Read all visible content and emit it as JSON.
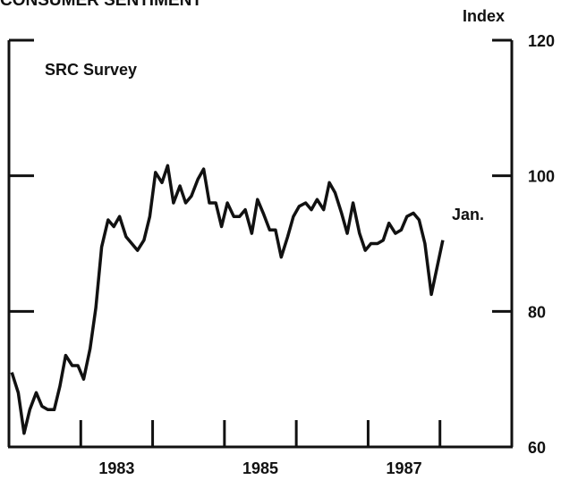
{
  "chart_data": {
    "type": "line",
    "title": "CONSUMER SENTIMENT",
    "y_axis_label": "Index",
    "annotations": [
      "SRC Survey",
      "Jan."
    ],
    "color": "#111111",
    "xlim": [
      1982,
      1989
    ],
    "xticks": [
      {
        "value": 1983.5,
        "label": "1983"
      },
      {
        "value": 1985.5,
        "label": "1985"
      },
      {
        "value": 1987.5,
        "label": "1987"
      }
    ],
    "ylim": [
      60,
      120
    ],
    "yticks": [
      60,
      80,
      100,
      120
    ],
    "x": [
      1982.04,
      1982.13,
      1982.21,
      1982.29,
      1982.38,
      1982.46,
      1982.54,
      1982.63,
      1982.71,
      1982.79,
      1982.88,
      1982.96,
      1983.04,
      1983.13,
      1983.21,
      1983.29,
      1983.38,
      1983.46,
      1983.54,
      1983.63,
      1983.71,
      1983.79,
      1983.88,
      1983.96,
      1984.04,
      1984.13,
      1984.21,
      1984.29,
      1984.38,
      1984.46,
      1984.54,
      1984.63,
      1984.71,
      1984.79,
      1984.88,
      1984.96,
      1985.04,
      1985.13,
      1985.21,
      1985.29,
      1985.38,
      1985.46,
      1985.54,
      1985.63,
      1985.71,
      1985.79,
      1985.88,
      1985.96,
      1986.04,
      1986.13,
      1986.21,
      1986.29,
      1986.38,
      1986.46,
      1986.54,
      1986.63,
      1986.71,
      1986.79,
      1986.88,
      1986.96,
      1987.04,
      1987.13,
      1987.21,
      1987.29,
      1987.38,
      1987.46,
      1987.54,
      1987.63,
      1987.71,
      1987.79,
      1987.88,
      1987.96,
      1988.04
    ],
    "values": [
      71,
      68,
      62,
      65.5,
      68,
      66,
      65.5,
      65.5,
      69,
      73.5,
      72,
      72,
      70,
      74.5,
      80.5,
      89.5,
      93.5,
      92.5,
      94,
      91,
      90,
      89,
      90.5,
      94,
      100.5,
      99,
      101.5,
      96,
      98.5,
      96,
      97,
      99.5,
      101,
      96,
      96,
      92.5,
      96,
      94,
      94,
      95,
      91.5,
      96.5,
      94.5,
      92,
      92,
      88,
      91,
      94,
      95.5,
      96,
      95,
      96.5,
      95,
      99,
      97.5,
      94.5,
      91.5,
      96,
      91.5,
      89,
      90,
      90,
      90.5,
      93,
      91.5,
      92,
      94,
      94.5,
      93.5,
      90,
      82.5,
      86.5,
      90.5
    ]
  }
}
